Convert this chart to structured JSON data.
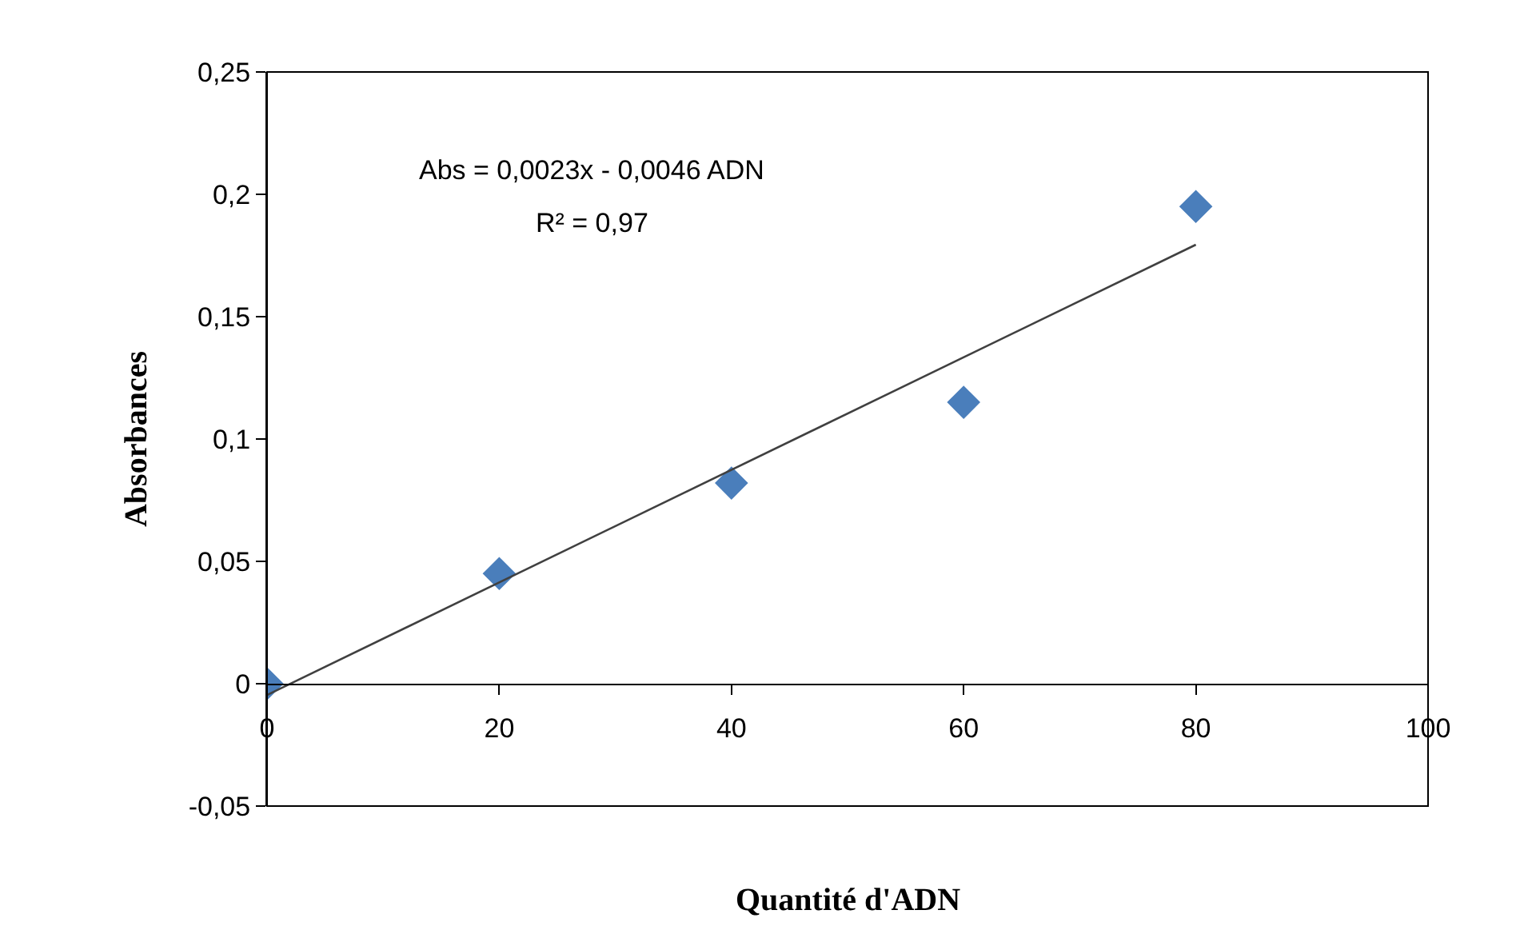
{
  "chart_data": {
    "type": "scatter",
    "xlabel": "Quantité d'ADN",
    "ylabel": "Absorbances",
    "annotations": [
      "Abs = 0,0023x - 0,0046 ADN",
      "R² = 0,97"
    ],
    "series": [
      {
        "color": "#4a7ebb",
        "marker": "diamond",
        "x": [
          0,
          20,
          40,
          60,
          80
        ],
        "values": [
          0,
          0.045,
          0.082,
          0.115,
          0.195
        ]
      },
      {
        "type": "line",
        "marker": "none",
        "color": "#404040",
        "x": [
          0,
          80
        ],
        "values": [
          -0.0046,
          0.1794
        ]
      }
    ],
    "xlim": [
      0,
      100
    ],
    "xticks": [
      0,
      20,
      40,
      60,
      80,
      100
    ],
    "ylim": [
      -0.05,
      0.25
    ],
    "yticks": [
      {
        "value": -0.05,
        "label": "-0,05"
      },
      {
        "value": 0,
        "label": "0"
      },
      {
        "value": 0.05,
        "label": "0,05"
      },
      {
        "value": 0.1,
        "label": "0,1"
      },
      {
        "value": 0.15,
        "label": "0,15"
      },
      {
        "value": 0.2,
        "label": "0,2"
      },
      {
        "value": 0.25,
        "label": "0,25"
      }
    ]
  }
}
